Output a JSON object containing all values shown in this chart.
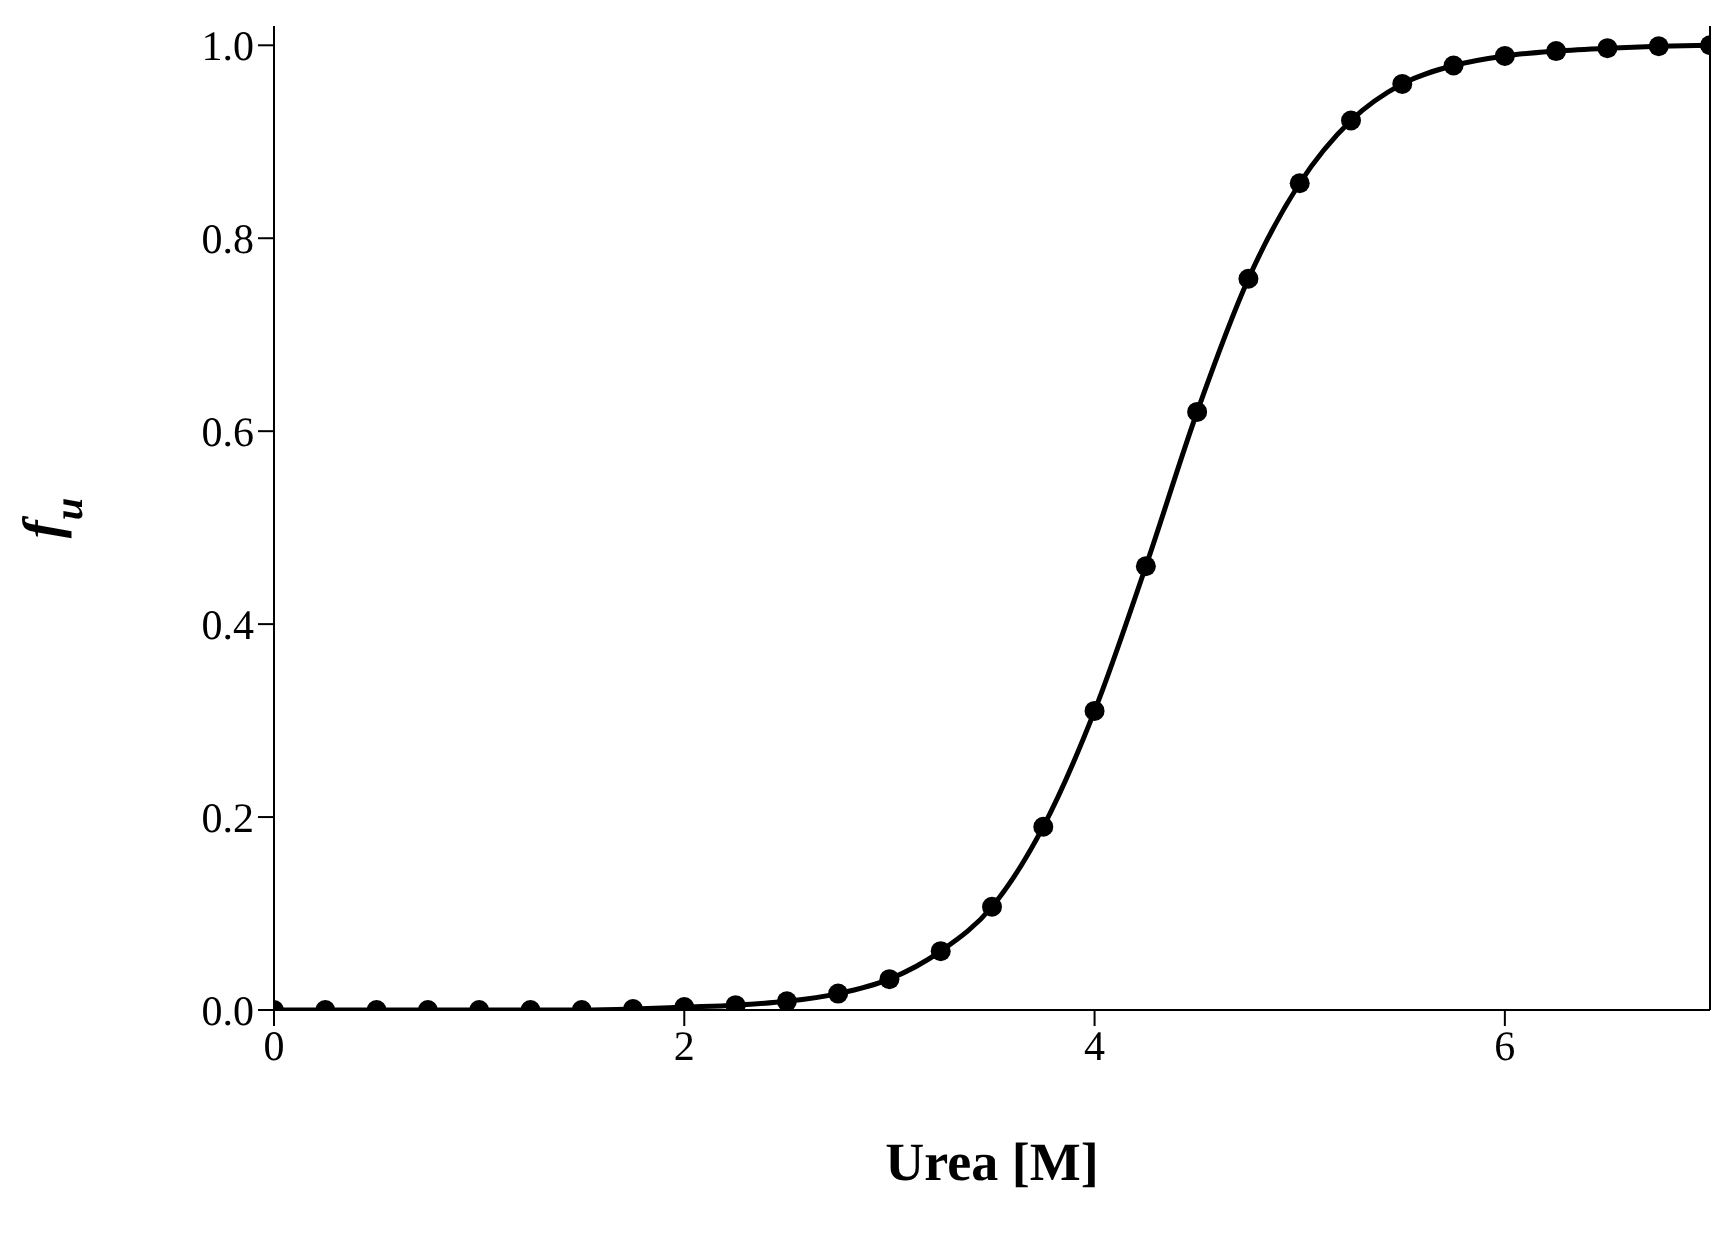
{
  "chart_data": {
    "type": "line",
    "xlabel": "Urea [M]",
    "ylabel": "f$_{u}$",
    "x": [
      0,
      0.25,
      0.5,
      0.75,
      1,
      1.25,
      1.5,
      1.75,
      2,
      2.25,
      2.5,
      2.75,
      3,
      3.25,
      3.5,
      3.75,
      4,
      4.25,
      4.5,
      4.75,
      5,
      5.25,
      5.5,
      5.75,
      6,
      6.25,
      6.5,
      6.75,
      7
    ],
    "series": [
      {
        "color": "#000000",
        "values": [
          0,
          0,
          0,
          0,
          0,
          0,
          0,
          0.001,
          0.003,
          0.005,
          0.009,
          0.017,
          0.032,
          0.061,
          0.107,
          0.19,
          0.31,
          0.46,
          0.62,
          0.758,
          0.857,
          0.922,
          0.96,
          0.979,
          0.989,
          0.994,
          0.997,
          0.999,
          1.0
        ]
      }
    ],
    "xlim": [
      0,
      7
    ],
    "xticks": [
      0,
      2,
      4,
      6
    ],
    "ylim": [
      0,
      1.02
    ],
    "yticks": [
      {
        "value": 0,
        "label": "0.0"
      },
      {
        "value": 0.2,
        "label": "0.2"
      },
      {
        "value": 0.4,
        "label": "0.4"
      },
      {
        "value": 0.6,
        "label": "0.6"
      },
      {
        "value": 0.8,
        "label": "0.8"
      },
      {
        "value": 1,
        "label": "1.0"
      }
    ],
    "marker": "circle",
    "line_style": "solid",
    "grid": false,
    "legend": false
  }
}
